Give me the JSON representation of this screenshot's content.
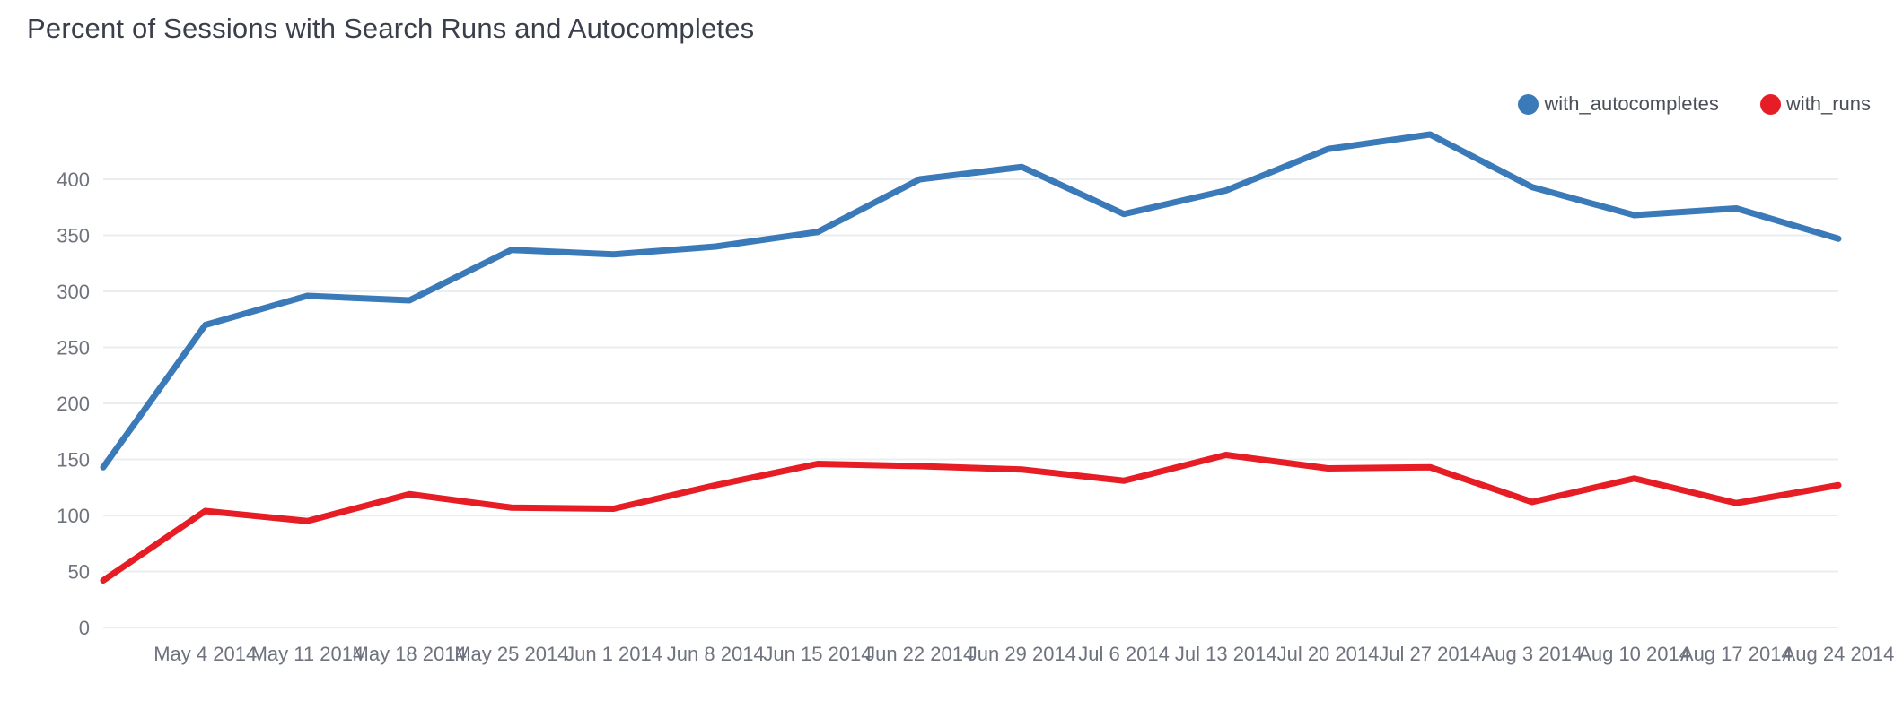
{
  "page": {
    "background": "#ffffff"
  },
  "header": {
    "title": "Percent of Sessions with Search Runs and Autocompletes"
  },
  "chart_data": {
    "type": "line",
    "title": "Percent of Sessions with Search Runs and Autocompletes",
    "categories": [
      "",
      "May 4 2014",
      "May 11 2014",
      "May 18 2014",
      "May 25 2014",
      "Jun 1 2014",
      "Jun 8 2014",
      "Jun 15 2014",
      "Jun 22 2014",
      "Jun 29 2014",
      "Jul 6 2014",
      "Jul 13 2014",
      "Jul 20 2014",
      "Jul 27 2014",
      "Aug 3 2014",
      "Aug 10 2014",
      "Aug 17 2014",
      "Aug 24 2014"
    ],
    "series": [
      {
        "name": "with_autocompletes",
        "color": "#3b7ab9",
        "values": [
          143,
          270,
          296,
          292,
          337,
          333,
          340,
          353,
          400,
          411,
          369,
          390,
          427,
          440,
          393,
          368,
          374,
          347
        ]
      },
      {
        "name": "with_runs",
        "color": "#e71d25",
        "values": [
          42,
          104,
          95,
          119,
          107,
          106,
          127,
          146,
          144,
          141,
          131,
          154,
          142,
          143,
          112,
          133,
          111,
          127
        ]
      }
    ],
    "xlabel": "",
    "ylabel": "",
    "y_ticks": [
      0,
      50,
      100,
      150,
      200,
      250,
      300,
      350,
      400
    ],
    "ylim": [
      0,
      450
    ],
    "grid": "horizontal",
    "legend_position": "top-right",
    "axis_text_color": "#6e737e",
    "grid_color": "#ebedf0"
  }
}
